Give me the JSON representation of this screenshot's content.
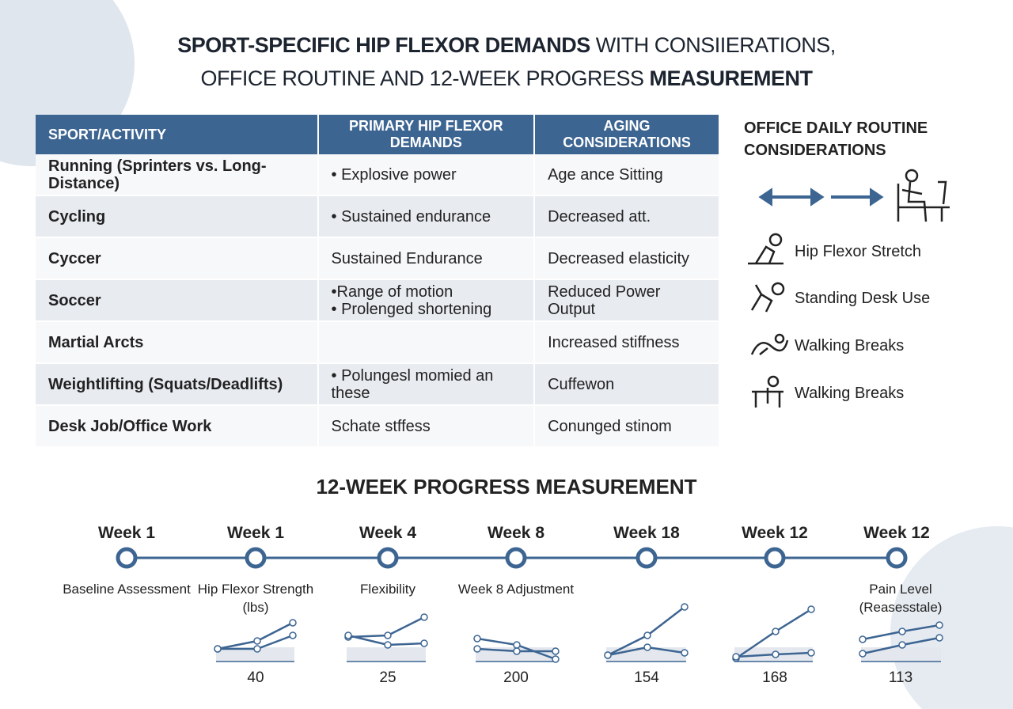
{
  "header": {
    "title": [
      [
        "SPORT-SPECIFIC HIP FLEXOR DEMANDS",
        "WITH CONSIIERATIONS,"
      ],
      [
        "OFFICE ROUTINE AND 12-WEEK PROGRESS",
        "MEASUREMENT"
      ]
    ]
  },
  "table": {
    "columns": [
      "SPORT/ACTIVITY",
      "PRIMARY HIP FLEXOR DEMANDS",
      "AGING CONSIDERATIONS"
    ],
    "rows": [
      [
        "Running (Sprinters vs. Long-Distance)",
        "• Explosive power",
        "Age ance Sitting"
      ],
      [
        "Cycling",
        "• Sustained endurance",
        "Decreased att."
      ],
      [
        "Cyccer",
        "Sustained Endurance",
        "Decreased elasticity"
      ],
      [
        "Soccer",
        [
          "•Range of motion",
          "• Prolenged shortening"
        ],
        "Reduced Power Output"
      ],
      [
        "Martial Arcts",
        null,
        "Increased stiffness"
      ],
      [
        "Weightlifting (Squats/Deadlifts)",
        "• Polungesl momied an these",
        "Cuffewon"
      ],
      [
        "Desk Job/Office Work",
        "Schate stffess",
        "Conunged stinom"
      ]
    ]
  },
  "office_routine": {
    "title": "OFFICE DAILY ROUTINE CONSIDERATIONS",
    "items": [
      "Hip Flexor Stretch",
      "Standing Desk Use",
      "Walking Breaks",
      "Walking Breaks"
    ]
  },
  "progress": {
    "title": "12-WEEK PROGRESS MEASUREMENT",
    "milestones": [
      {
        "week": "Week 1",
        "label": "Baseline Assessment",
        "value": null
      },
      {
        "week": "Week 1",
        "label": "Hip Flexor Strength (lbs)",
        "value": 40
      },
      {
        "week": "Week 4",
        "label": "Flexibility",
        "value": 25
      },
      {
        "week": "Week 8",
        "label": "Week 8 Adjustment",
        "value": 200
      },
      {
        "week": "Week 18",
        "label": null,
        "value": 154
      },
      {
        "week": "Week 12",
        "label": null,
        "value": 168
      },
      {
        "week": "Week 12",
        "label": "Pain Level (Reasesstale)",
        "value": 113
      }
    ]
  }
}
